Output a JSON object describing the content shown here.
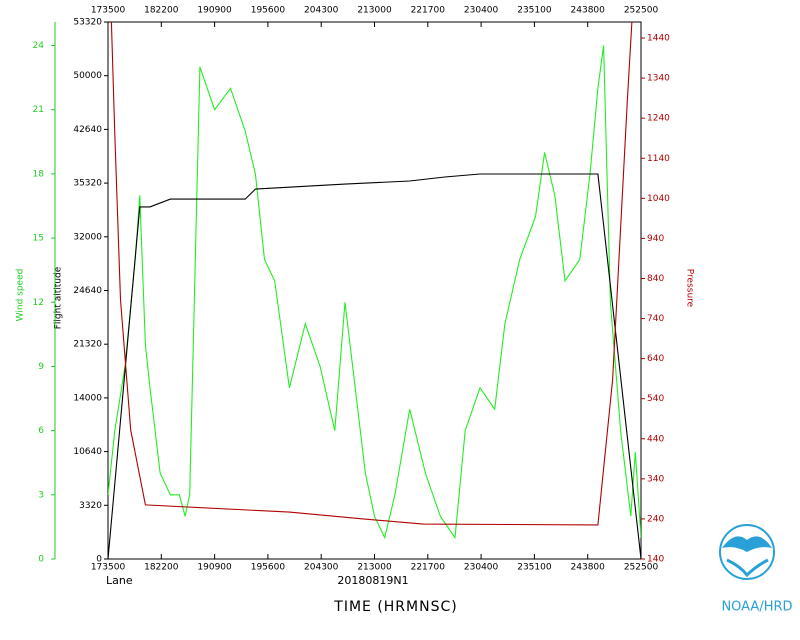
{
  "chart_data": {
    "type": "line",
    "subtitle": "20180819N1",
    "annotation": "Lane",
    "xlabel": "TIME (HRMNSC)",
    "credit": "NOAA/HRD",
    "xlim": [
      1055,
      1525
    ],
    "xticks": [
      {
        "value": 1055,
        "label": "173500"
      },
      {
        "value": 1102,
        "label": "182200"
      },
      {
        "value": 1149,
        "label": "190900"
      },
      {
        "value": 1196,
        "label": "195600"
      },
      {
        "value": 1243,
        "label": "204300"
      },
      {
        "value": 1290,
        "label": "213000"
      },
      {
        "value": 1337,
        "label": "221700"
      },
      {
        "value": 1384,
        "label": "230400"
      },
      {
        "value": 1431,
        "label": "235100"
      },
      {
        "value": 1478,
        "label": "243800"
      },
      {
        "value": 1525,
        "label": "252500"
      }
    ],
    "ylabel": "Wind speed",
    "ylim": [
      0,
      25.1
    ],
    "yticks": [
      0,
      3,
      6,
      9,
      12,
      15,
      18,
      21,
      24
    ],
    "y3label": "Flight altitude",
    "y3lim": [
      0,
      53320
    ],
    "y3ticks": [
      0,
      3320,
      10640,
      14000,
      21320,
      24640,
      32000,
      35320,
      42640,
      50000,
      53320
    ],
    "y2label": "Pressure",
    "y2lim": [
      140,
      1480
    ],
    "y2ticks": [
      140,
      240,
      340,
      440,
      540,
      640,
      740,
      840,
      940,
      1040,
      1140,
      1240,
      1340,
      1440
    ],
    "series": [
      {
        "name": "Wind speed",
        "color": "#22ee22",
        "axis": "y",
        "x": [
          1055,
          1061,
          1070,
          1079,
          1083,
          1088,
          1092,
          1101,
          1110,
          1118,
          1123,
          1127,
          1136,
          1149,
          1163,
          1176,
          1185,
          1193,
          1202,
          1215,
          1229,
          1242,
          1255,
          1264,
          1273,
          1282,
          1290,
          1299,
          1308,
          1321,
          1335,
          1348,
          1361,
          1370,
          1383,
          1396,
          1405,
          1418,
          1432,
          1440,
          1449,
          1458,
          1471,
          1480,
          1487,
          1492,
          1498,
          1507,
          1516,
          1520,
          1525
        ],
        "values": [
          3,
          6,
          9,
          14,
          17,
          10,
          8,
          4,
          3,
          3,
          2,
          3,
          23,
          21,
          22,
          20,
          18,
          14,
          13,
          8,
          11,
          9,
          6,
          12,
          8,
          4,
          2,
          1,
          3,
          7,
          4,
          2,
          1,
          6,
          8,
          7,
          11,
          14,
          16,
          19,
          17,
          13,
          14,
          18,
          22,
          24,
          12,
          6,
          2,
          5,
          1
        ]
      },
      {
        "name": "Flight altitude",
        "color": "#000000",
        "axis": "y3",
        "x": [
          1055,
          1083,
          1092,
          1110,
          1176,
          1185,
          1264,
          1321,
          1352,
          1383,
          1487,
          1525
        ],
        "values": [
          0,
          33850,
          33850,
          34330,
          34330,
          34950,
          35260,
          35600,
          36150,
          36560,
          36560,
          0
        ]
      },
      {
        "name": "Pressure",
        "color": "#b00000",
        "axis": "y2",
        "x": [
          1058,
          1061,
          1066,
          1075,
          1088,
          1215,
          1280,
          1333,
          1487,
          1500,
          1513,
          1517
        ],
        "values": [
          1480,
          1200,
          787,
          462,
          275,
          257,
          240,
          227,
          225,
          587,
          1287,
          1480
        ]
      }
    ]
  }
}
